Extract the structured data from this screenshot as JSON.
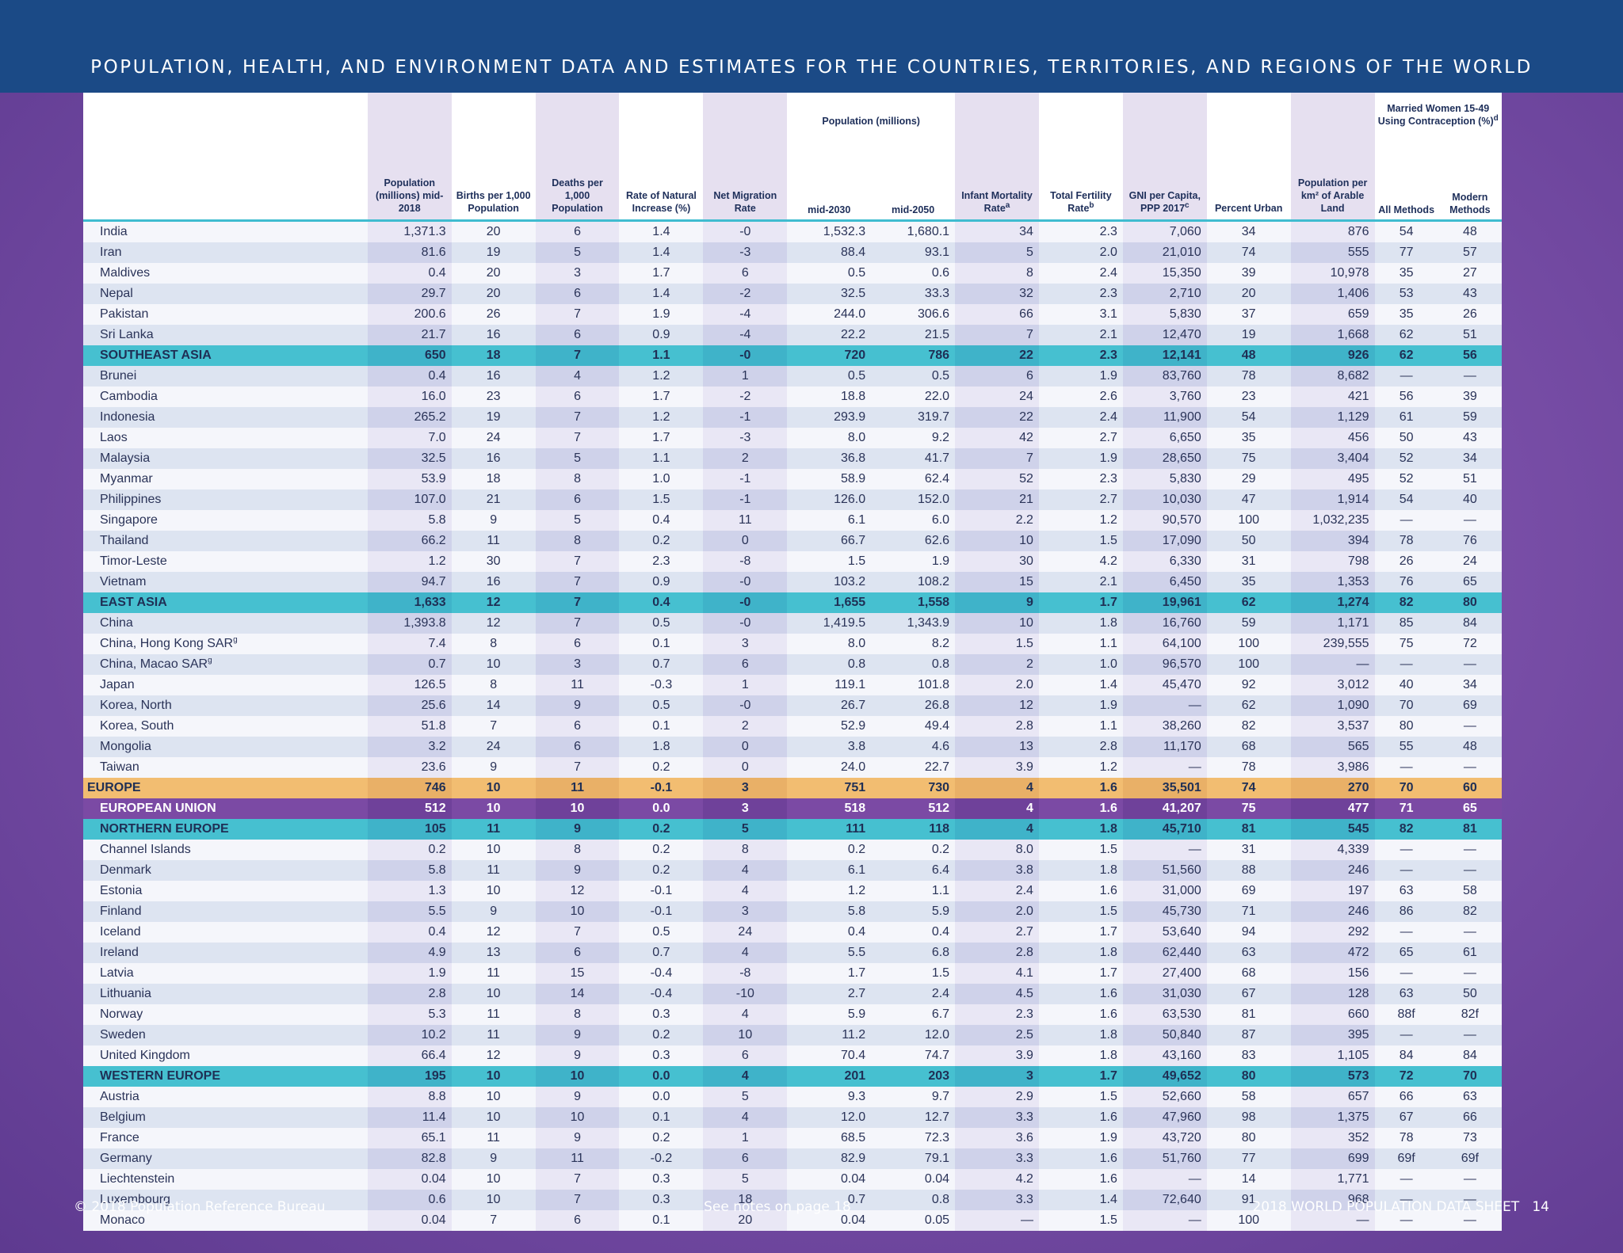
{
  "title": "POPULATION, HEALTH, AND ENVIRONMENT DATA AND ESTIMATES FOR THE COUNTRIES, TERRITORIES, AND REGIONS OF THE WORLD",
  "headers": {
    "pop_2018": "Population (millions) mid-2018",
    "births": "Births per 1,000 Population",
    "deaths": "Deaths per 1,000 Population",
    "rni": "Rate of Natural Increase (%)",
    "migration": "Net Migration Rate",
    "pop_group": "Population (millions)",
    "pop_2030": "mid-2030",
    "pop_2050": "mid-2050",
    "imr": "Infant Mortality Rate",
    "imr_note": "a",
    "tfr": "Total Fertility Rate",
    "tfr_note": "b",
    "gni": "GNI per Capita, PPP 2017",
    "gni_note": "c",
    "urban": "Percent Urban",
    "arable": "Population per km² of Arable Land",
    "contra_group": "Married Women 15-49 Using Contraception (%)",
    "contra_note": "d",
    "all_methods": "All Methods",
    "modern_methods": "Modern Methods"
  },
  "rows": [
    {
      "name": "India",
      "type": "country",
      "v": [
        "1,371.3",
        "20",
        "6",
        "1.4",
        "-0",
        "1,532.3",
        "1,680.1",
        "34",
        "2.3",
        "7,060",
        "34",
        "876",
        "54",
        "48"
      ]
    },
    {
      "name": "Iran",
      "type": "country",
      "v": [
        "81.6",
        "19",
        "5",
        "1.4",
        "-3",
        "88.4",
        "93.1",
        "5",
        "2.0",
        "21,010",
        "74",
        "555",
        "77",
        "57"
      ]
    },
    {
      "name": "Maldives",
      "type": "country",
      "v": [
        "0.4",
        "20",
        "3",
        "1.7",
        "6",
        "0.5",
        "0.6",
        "8",
        "2.4",
        "15,350",
        "39",
        "10,978",
        "35",
        "27"
      ]
    },
    {
      "name": "Nepal",
      "type": "country",
      "v": [
        "29.7",
        "20",
        "6",
        "1.4",
        "-2",
        "32.5",
        "33.3",
        "32",
        "2.3",
        "2,710",
        "20",
        "1,406",
        "53",
        "43"
      ]
    },
    {
      "name": "Pakistan",
      "type": "country",
      "v": [
        "200.6",
        "26",
        "7",
        "1.9",
        "-4",
        "244.0",
        "306.6",
        "66",
        "3.1",
        "5,830",
        "37",
        "659",
        "35",
        "26"
      ]
    },
    {
      "name": "Sri Lanka",
      "type": "country",
      "v": [
        "21.7",
        "16",
        "6",
        "0.9",
        "-4",
        "22.2",
        "21.5",
        "7",
        "2.1",
        "12,470",
        "19",
        "1,668",
        "62",
        "51"
      ]
    },
    {
      "name": "SOUTHEAST ASIA",
      "type": "region",
      "v": [
        "650",
        "18",
        "7",
        "1.1",
        "-0",
        "720",
        "786",
        "22",
        "2.3",
        "12,141",
        "48",
        "926",
        "62",
        "56"
      ]
    },
    {
      "name": "Brunei",
      "type": "country",
      "v": [
        "0.4",
        "16",
        "4",
        "1.2",
        "1",
        "0.5",
        "0.5",
        "6",
        "1.9",
        "83,760",
        "78",
        "8,682",
        "—",
        "—"
      ]
    },
    {
      "name": "Cambodia",
      "type": "country",
      "v": [
        "16.0",
        "23",
        "6",
        "1.7",
        "-2",
        "18.8",
        "22.0",
        "24",
        "2.6",
        "3,760",
        "23",
        "421",
        "56",
        "39"
      ]
    },
    {
      "name": "Indonesia",
      "type": "country",
      "v": [
        "265.2",
        "19",
        "7",
        "1.2",
        "-1",
        "293.9",
        "319.7",
        "22",
        "2.4",
        "11,900",
        "54",
        "1,129",
        "61",
        "59"
      ]
    },
    {
      "name": "Laos",
      "type": "country",
      "v": [
        "7.0",
        "24",
        "7",
        "1.7",
        "-3",
        "8.0",
        "9.2",
        "42",
        "2.7",
        "6,650",
        "35",
        "456",
        "50",
        "43"
      ]
    },
    {
      "name": "Malaysia",
      "type": "country",
      "v": [
        "32.5",
        "16",
        "5",
        "1.1",
        "2",
        "36.8",
        "41.7",
        "7",
        "1.9",
        "28,650",
        "75",
        "3,404",
        "52",
        "34"
      ]
    },
    {
      "name": "Myanmar",
      "type": "country",
      "v": [
        "53.9",
        "18",
        "8",
        "1.0",
        "-1",
        "58.9",
        "62.4",
        "52",
        "2.3",
        "5,830",
        "29",
        "495",
        "52",
        "51"
      ]
    },
    {
      "name": "Philippines",
      "type": "country",
      "v": [
        "107.0",
        "21",
        "6",
        "1.5",
        "-1",
        "126.0",
        "152.0",
        "21",
        "2.7",
        "10,030",
        "47",
        "1,914",
        "54",
        "40"
      ]
    },
    {
      "name": "Singapore",
      "type": "country",
      "v": [
        "5.8",
        "9",
        "5",
        "0.4",
        "11",
        "6.1",
        "6.0",
        "2.2",
        "1.2",
        "90,570",
        "100",
        "1,032,235",
        "—",
        "—"
      ]
    },
    {
      "name": "Thailand",
      "type": "country",
      "v": [
        "66.2",
        "11",
        "8",
        "0.2",
        "0",
        "66.7",
        "62.6",
        "10",
        "1.5",
        "17,090",
        "50",
        "394",
        "78",
        "76"
      ]
    },
    {
      "name": "Timor-Leste",
      "type": "country",
      "v": [
        "1.2",
        "30",
        "7",
        "2.3",
        "-8",
        "1.5",
        "1.9",
        "30",
        "4.2",
        "6,330",
        "31",
        "798",
        "26",
        "24"
      ]
    },
    {
      "name": "Vietnam",
      "type": "country",
      "v": [
        "94.7",
        "16",
        "7",
        "0.9",
        "-0",
        "103.2",
        "108.2",
        "15",
        "2.1",
        "6,450",
        "35",
        "1,353",
        "76",
        "65"
      ]
    },
    {
      "name": "EAST ASIA",
      "type": "region",
      "v": [
        "1,633",
        "12",
        "7",
        "0.4",
        "-0",
        "1,655",
        "1,558",
        "9",
        "1.7",
        "19,961",
        "62",
        "1,274",
        "82",
        "80"
      ]
    },
    {
      "name": "China",
      "type": "country",
      "v": [
        "1,393.8",
        "12",
        "7",
        "0.5",
        "-0",
        "1,419.5",
        "1,343.9",
        "10",
        "1.8",
        "16,760",
        "59",
        "1,171",
        "85",
        "84"
      ]
    },
    {
      "name": "China, Hong Kong SAR",
      "note": "g",
      "type": "country",
      "v": [
        "7.4",
        "8",
        "6",
        "0.1",
        "3",
        "8.0",
        "8.2",
        "1.5",
        "1.1",
        "64,100",
        "100",
        "239,555",
        "75",
        "72"
      ]
    },
    {
      "name": "China, Macao SAR",
      "note": "g",
      "type": "country",
      "v": [
        "0.7",
        "10",
        "3",
        "0.7",
        "6",
        "0.8",
        "0.8",
        "2",
        "1.0",
        "96,570",
        "100",
        "—",
        "—",
        "—"
      ]
    },
    {
      "name": "Japan",
      "type": "country",
      "v": [
        "126.5",
        "8",
        "11",
        "-0.3",
        "1",
        "119.1",
        "101.8",
        "2.0",
        "1.4",
        "45,470",
        "92",
        "3,012",
        "40",
        "34"
      ]
    },
    {
      "name": "Korea, North",
      "type": "country",
      "v": [
        "25.6",
        "14",
        "9",
        "0.5",
        "-0",
        "26.7",
        "26.8",
        "12",
        "1.9",
        "—",
        "62",
        "1,090",
        "70",
        "69"
      ]
    },
    {
      "name": "Korea, South",
      "type": "country",
      "v": [
        "51.8",
        "7",
        "6",
        "0.1",
        "2",
        "52.9",
        "49.4",
        "2.8",
        "1.1",
        "38,260",
        "82",
        "3,537",
        "80",
        "—"
      ]
    },
    {
      "name": "Mongolia",
      "type": "country",
      "v": [
        "3.2",
        "24",
        "6",
        "1.8",
        "0",
        "3.8",
        "4.6",
        "13",
        "2.8",
        "11,170",
        "68",
        "565",
        "55",
        "48"
      ]
    },
    {
      "name": "Taiwan",
      "type": "country",
      "v": [
        "23.6",
        "9",
        "7",
        "0.2",
        "0",
        "24.0",
        "22.7",
        "3.9",
        "1.2",
        "—",
        "78",
        "3,986",
        "—",
        "—"
      ]
    },
    {
      "name": "EUROPE",
      "type": "region2",
      "v": [
        "746",
        "10",
        "11",
        "-0.1",
        "3",
        "751",
        "730",
        "4",
        "1.6",
        "35,501",
        "74",
        "270",
        "70",
        "60"
      ]
    },
    {
      "name": "EUROPEAN UNION",
      "type": "region3",
      "v": [
        "512",
        "10",
        "10",
        "0.0",
        "3",
        "518",
        "512",
        "4",
        "1.6",
        "41,207",
        "75",
        "477",
        "71",
        "65"
      ]
    },
    {
      "name": "NORTHERN EUROPE",
      "type": "region",
      "v": [
        "105",
        "11",
        "9",
        "0.2",
        "5",
        "111",
        "118",
        "4",
        "1.8",
        "45,710",
        "81",
        "545",
        "82",
        "81"
      ]
    },
    {
      "name": "Channel Islands",
      "type": "country",
      "v": [
        "0.2",
        "10",
        "8",
        "0.2",
        "8",
        "0.2",
        "0.2",
        "8.0",
        "1.5",
        "—",
        "31",
        "4,339",
        "—",
        "—"
      ]
    },
    {
      "name": "Denmark",
      "type": "country",
      "v": [
        "5.8",
        "11",
        "9",
        "0.2",
        "4",
        "6.1",
        "6.4",
        "3.8",
        "1.8",
        "51,560",
        "88",
        "246",
        "—",
        "—"
      ]
    },
    {
      "name": "Estonia",
      "type": "country",
      "v": [
        "1.3",
        "10",
        "12",
        "-0.1",
        "4",
        "1.2",
        "1.1",
        "2.4",
        "1.6",
        "31,000",
        "69",
        "197",
        "63",
        "58"
      ]
    },
    {
      "name": "Finland",
      "type": "country",
      "v": [
        "5.5",
        "9",
        "10",
        "-0.1",
        "3",
        "5.8",
        "5.9",
        "2.0",
        "1.5",
        "45,730",
        "71",
        "246",
        "86",
        "82"
      ]
    },
    {
      "name": "Iceland",
      "type": "country",
      "v": [
        "0.4",
        "12",
        "7",
        "0.5",
        "24",
        "0.4",
        "0.4",
        "2.7",
        "1.7",
        "53,640",
        "94",
        "292",
        "—",
        "—"
      ]
    },
    {
      "name": "Ireland",
      "type": "country",
      "v": [
        "4.9",
        "13",
        "6",
        "0.7",
        "4",
        "5.5",
        "6.8",
        "2.8",
        "1.8",
        "62,440",
        "63",
        "472",
        "65",
        "61"
      ]
    },
    {
      "name": "Latvia",
      "type": "country",
      "v": [
        "1.9",
        "11",
        "15",
        "-0.4",
        "-8",
        "1.7",
        "1.5",
        "4.1",
        "1.7",
        "27,400",
        "68",
        "156",
        "—",
        "—"
      ]
    },
    {
      "name": "Lithuania",
      "type": "country",
      "v": [
        "2.8",
        "10",
        "14",
        "-0.4",
        "-10",
        "2.7",
        "2.4",
        "4.5",
        "1.6",
        "31,030",
        "67",
        "128",
        "63",
        "50"
      ]
    },
    {
      "name": "Norway",
      "type": "country",
      "v": [
        "5.3",
        "11",
        "8",
        "0.3",
        "4",
        "5.9",
        "6.7",
        "2.3",
        "1.6",
        "63,530",
        "81",
        "660",
        "88f",
        "82f"
      ]
    },
    {
      "name": "Sweden",
      "type": "country",
      "v": [
        "10.2",
        "11",
        "9",
        "0.2",
        "10",
        "11.2",
        "12.0",
        "2.5",
        "1.8",
        "50,840",
        "87",
        "395",
        "—",
        "—"
      ]
    },
    {
      "name": "United Kingdom",
      "type": "country",
      "v": [
        "66.4",
        "12",
        "9",
        "0.3",
        "6",
        "70.4",
        "74.7",
        "3.9",
        "1.8",
        "43,160",
        "83",
        "1,105",
        "84",
        "84"
      ]
    },
    {
      "name": "WESTERN EUROPE",
      "type": "region",
      "v": [
        "195",
        "10",
        "10",
        "0.0",
        "4",
        "201",
        "203",
        "3",
        "1.7",
        "49,652",
        "80",
        "573",
        "72",
        "70"
      ]
    },
    {
      "name": "Austria",
      "type": "country",
      "v": [
        "8.8",
        "10",
        "9",
        "0.0",
        "5",
        "9.3",
        "9.7",
        "2.9",
        "1.5",
        "52,660",
        "58",
        "657",
        "66",
        "63"
      ]
    },
    {
      "name": "Belgium",
      "type": "country",
      "v": [
        "11.4",
        "10",
        "10",
        "0.1",
        "4",
        "12.0",
        "12.7",
        "3.3",
        "1.6",
        "47,960",
        "98",
        "1,375",
        "67",
        "66"
      ]
    },
    {
      "name": "France",
      "type": "country",
      "v": [
        "65.1",
        "11",
        "9",
        "0.2",
        "1",
        "68.5",
        "72.3",
        "3.6",
        "1.9",
        "43,720",
        "80",
        "352",
        "78",
        "73"
      ]
    },
    {
      "name": "Germany",
      "type": "country",
      "v": [
        "82.8",
        "9",
        "11",
        "-0.2",
        "6",
        "82.9",
        "79.1",
        "3.3",
        "1.6",
        "51,760",
        "77",
        "699",
        "69f",
        "69f"
      ]
    },
    {
      "name": "Liechtenstein",
      "type": "country",
      "v": [
        "0.04",
        "10",
        "7",
        "0.3",
        "5",
        "0.04",
        "0.04",
        "4.2",
        "1.6",
        "—",
        "14",
        "1,771",
        "—",
        "—"
      ]
    },
    {
      "name": "Luxembourg",
      "type": "country",
      "v": [
        "0.6",
        "10",
        "7",
        "0.3",
        "18",
        "0.7",
        "0.8",
        "3.3",
        "1.4",
        "72,640",
        "91",
        "968",
        "—",
        "—"
      ]
    },
    {
      "name": "Monaco",
      "type": "country",
      "v": [
        "0.04",
        "7",
        "6",
        "0.1",
        "20",
        "0.04",
        "0.05",
        "—",
        "1.5",
        "—",
        "100",
        "—",
        "—",
        "—"
      ]
    }
  ],
  "footer": {
    "left": "© 2018 Population Reference Bureau",
    "center": "See notes on page 18",
    "right": "2018 WORLD POPULATION DATA SHEET   14"
  }
}
